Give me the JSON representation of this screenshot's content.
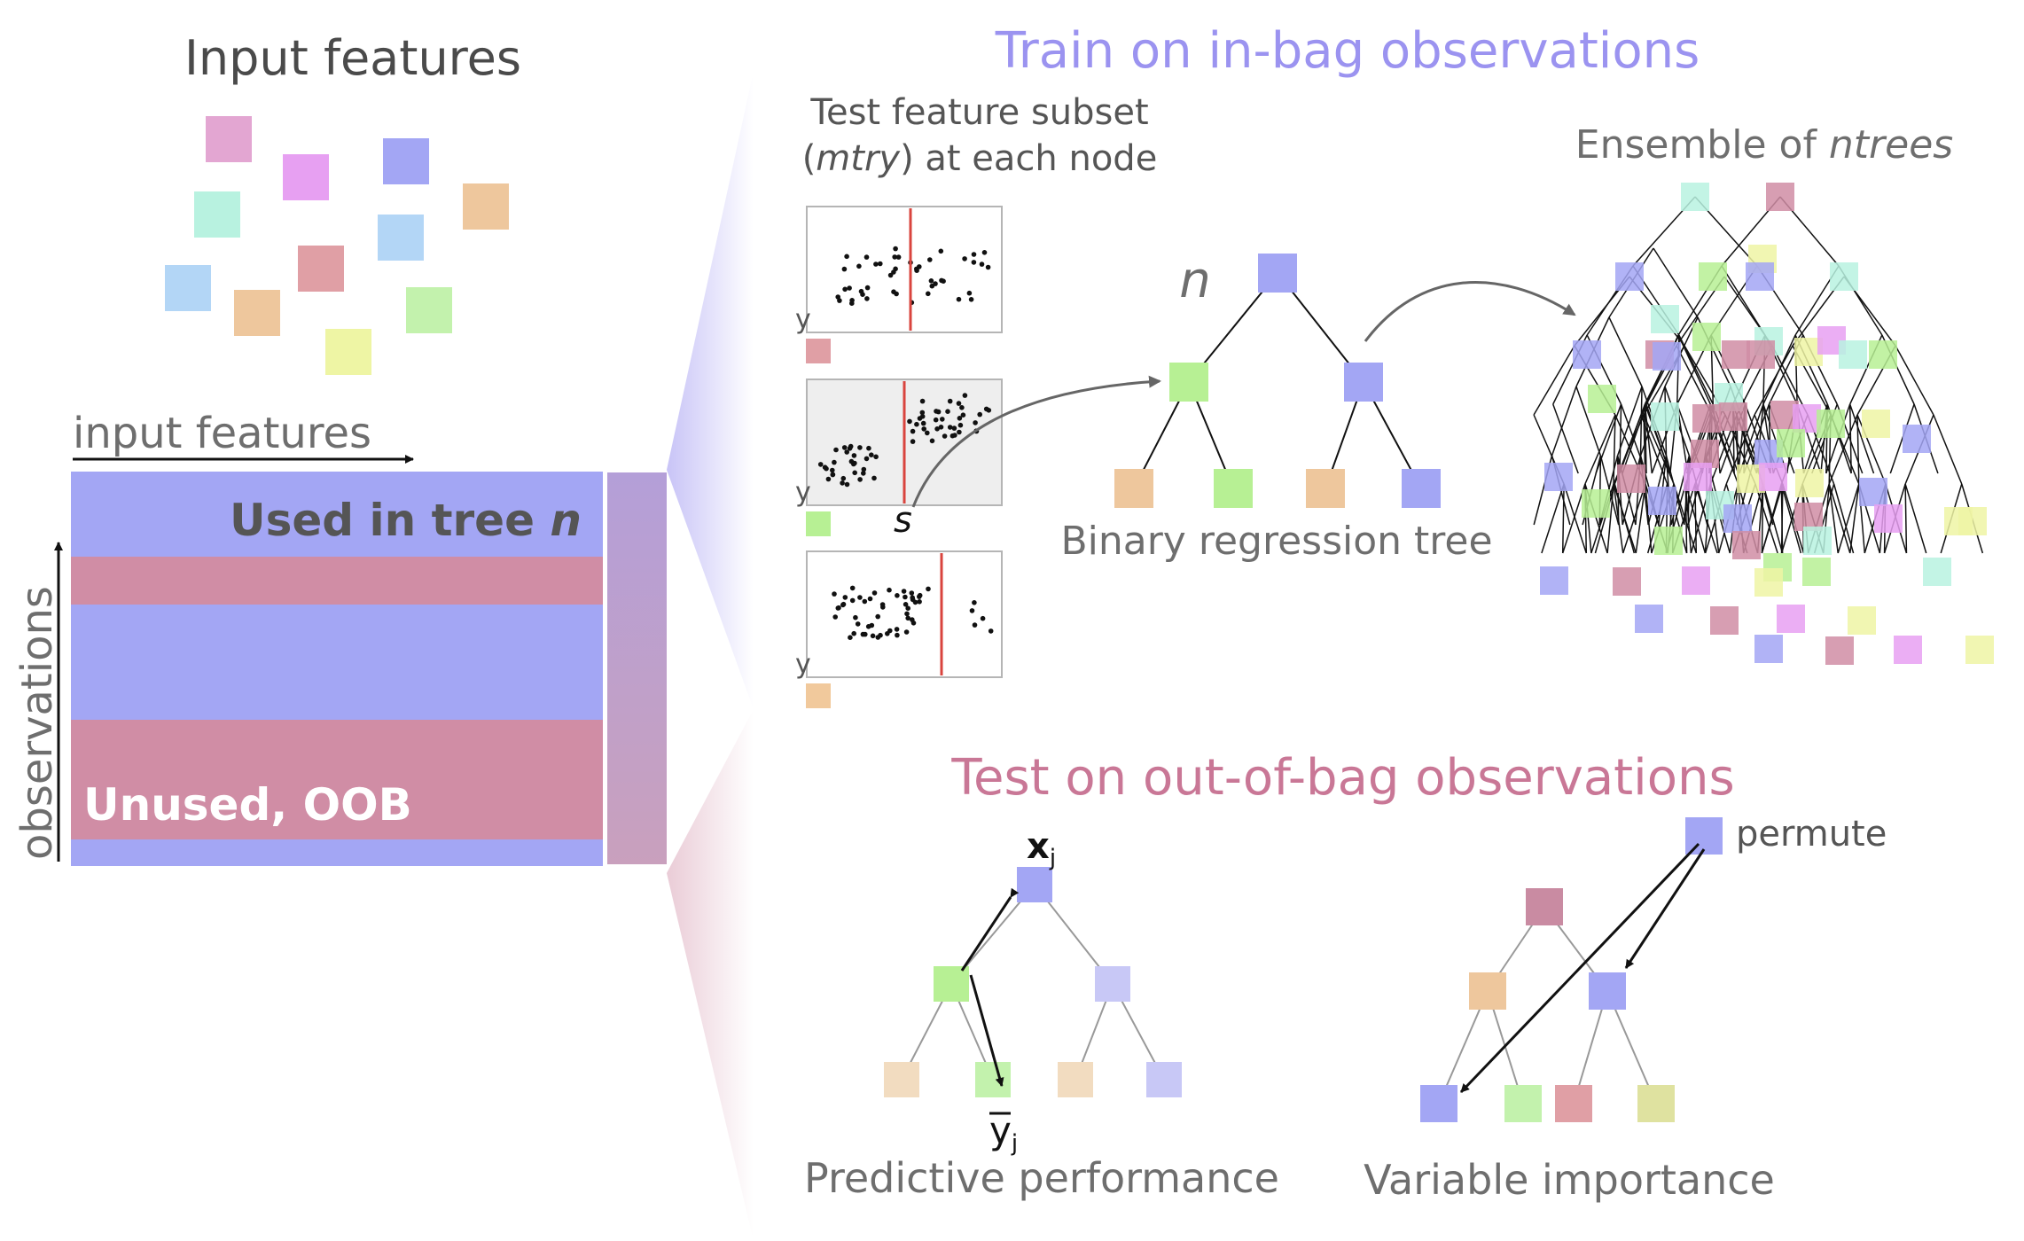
{
  "colors": {
    "blue": "#a3a6f4",
    "pink": "#d08da5",
    "train_title": "#9b93f0",
    "test_title": "#c97796",
    "gray_text": "#6e6e6e",
    "dark_text": "#4a4a4a",
    "split_line": "#d9443e"
  },
  "left_panel": {
    "title": "Input features",
    "axis_x_label": "input features",
    "axis_y_label": "observations",
    "used_label": "Used in tree ",
    "used_label_n": "n",
    "unused_label": "Unused, OOB"
  },
  "train": {
    "title": "Train on in-bag observations",
    "subset_line1": "Test feature subset",
    "subset_line2_open": "(",
    "subset_line2_mtry": "mtry",
    "subset_line2_rest": ") at each node",
    "y_label": "y",
    "split_label": "s",
    "tree_n_label": "n",
    "tree_label": "Binary regression tree",
    "ensemble_label": "Ensemble of ",
    "ensemble_label_italic": "ntrees"
  },
  "test": {
    "title": "Test on out-of-bag observations",
    "xj_label": "x",
    "xj_sub": "j",
    "yj_label": "y",
    "yj_sub": "j",
    "permute_label": "permute",
    "predictive_label": "Predictive performance",
    "importance_label": "Variable importance"
  }
}
